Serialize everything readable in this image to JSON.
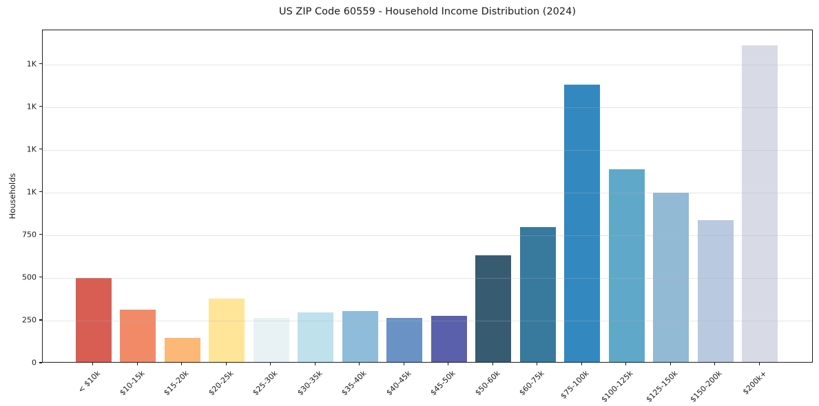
{
  "title": "US ZIP Code 60559 - Household Income Distribution (2024)",
  "chart_data": {
    "type": "bar",
    "title": "US ZIP Code 60559 - Household Income Distribution (2024)",
    "xlabel": "",
    "ylabel": "Households",
    "categories": [
      "< $10k",
      "$10-15k",
      "$15-20k",
      "$20-25k",
      "$25-30k",
      "$30-35k",
      "$35-40k",
      "$40-45k",
      "$45-50k",
      "$50-60k",
      "$60-75k",
      "$75-100k",
      "$100-125k",
      "$125-150k",
      "$150-200k",
      "$200k+"
    ],
    "values": [
      490,
      307,
      143,
      371,
      258,
      292,
      299,
      256,
      271,
      623,
      790,
      1622,
      1130,
      992,
      832,
      1852
    ],
    "bar_colors": [
      "#d85e54",
      "#f28a68",
      "#fbb877",
      "#fee598",
      "#e8f2f5",
      "#bee1ec",
      "#90bcdb",
      "#6a92c5",
      "#5a60ab",
      "#375c72",
      "#377a9e",
      "#3389bf",
      "#5fa8ca",
      "#93bad5",
      "#b9c9df",
      "#d8dae6"
    ],
    "ylim": [
      0,
      1950
    ],
    "yticks": [
      {
        "value": 0,
        "label": "0"
      },
      {
        "value": 250,
        "label": "250"
      },
      {
        "value": 500,
        "label": "500"
      },
      {
        "value": 750,
        "label": "750"
      },
      {
        "value": 1000,
        "label": "1K"
      },
      {
        "value": 1250,
        "label": "1K"
      },
      {
        "value": 1500,
        "label": "1K"
      },
      {
        "value": 1750,
        "label": "1K"
      }
    ],
    "grid": "horizontal-only, light gray, drawn over bars",
    "legend": "none",
    "background_color": "#ffffff",
    "spine_color": "#1a1a1a"
  }
}
